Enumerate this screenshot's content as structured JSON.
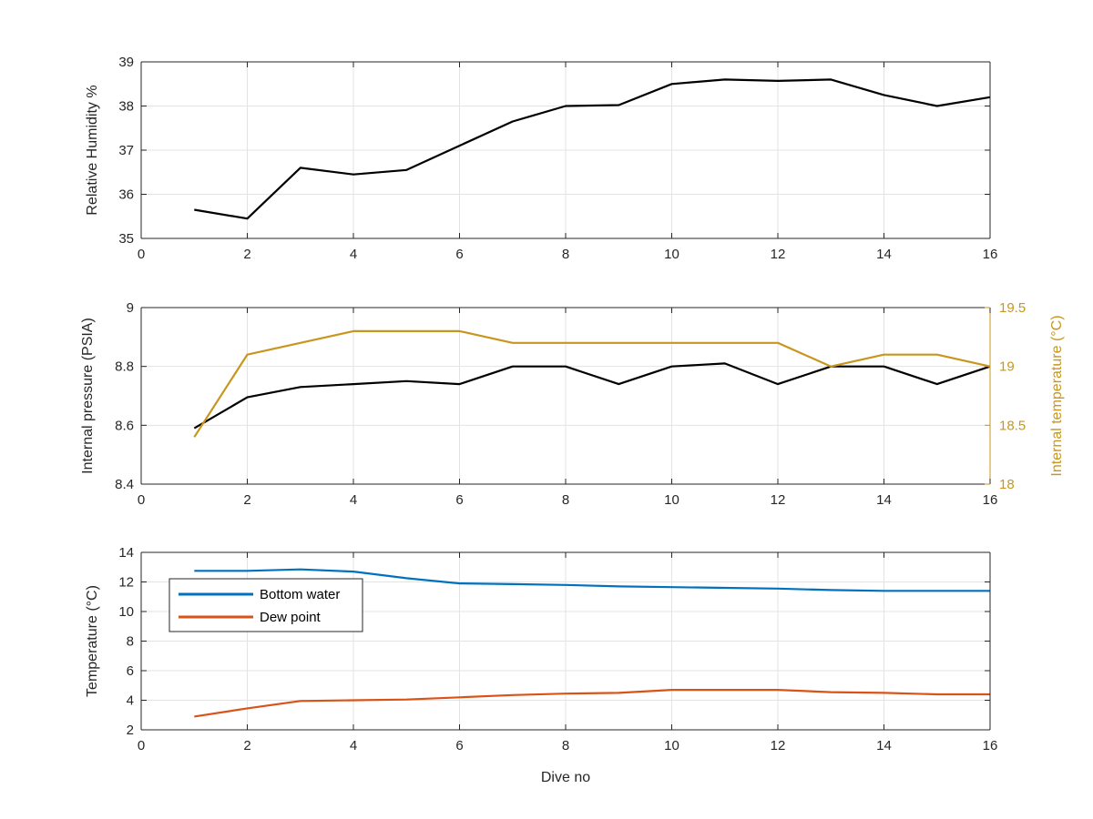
{
  "chart_data": [
    {
      "type": "line",
      "xlabel": "",
      "ylabel": "Relative Humidity %",
      "xlim": [
        0,
        16
      ],
      "ylim": [
        35,
        39
      ],
      "xticks": [
        "0",
        "2",
        "4",
        "6",
        "8",
        "10",
        "12",
        "14",
        "16"
      ],
      "yticks": [
        "35",
        "36",
        "37",
        "38",
        "39"
      ],
      "grid": true,
      "colors": [
        "#000000"
      ],
      "x": [
        1,
        2,
        3,
        4,
        5,
        6,
        7,
        8,
        9,
        10,
        11,
        12,
        13,
        14,
        15,
        16
      ],
      "series": [
        {
          "values": [
            35.65,
            35.45,
            36.6,
            36.45,
            36.55,
            37.1,
            37.65,
            38.0,
            38.02,
            38.5,
            38.6,
            38.57,
            38.6,
            38.25,
            38.0,
            38.2
          ]
        }
      ]
    },
    {
      "type": "line",
      "xlabel": "",
      "ylabel": "Internal pressure (PSIA)",
      "ylabel_right": "Internal temperature (°C)",
      "xlim": [
        0,
        16
      ],
      "ylim": [
        8.4,
        9.0
      ],
      "ylim_right": [
        18,
        19.5
      ],
      "xticks": [
        "0",
        "2",
        "4",
        "6",
        "8",
        "10",
        "12",
        "14",
        "16"
      ],
      "yticks": [
        "8.4",
        "8.6",
        "8.8",
        "9"
      ],
      "yticks_right": [
        "18",
        "18.5",
        "19",
        "19.5"
      ],
      "grid": true,
      "colors": [
        "#000000",
        "#C8961E"
      ],
      "x": [
        1,
        2,
        3,
        4,
        5,
        6,
        7,
        8,
        9,
        10,
        11,
        12,
        13,
        14,
        15,
        16
      ],
      "series": [
        {
          "axis": "left",
          "values": [
            8.59,
            8.695,
            8.73,
            8.74,
            8.75,
            8.74,
            8.8,
            8.8,
            8.74,
            8.8,
            8.81,
            8.74,
            8.8,
            8.8,
            8.74,
            8.8
          ]
        },
        {
          "axis": "right",
          "values": [
            18.4,
            19.1,
            19.2,
            19.3,
            19.3,
            19.3,
            19.2,
            19.2,
            19.2,
            19.2,
            19.2,
            19.2,
            19.0,
            19.1,
            19.1,
            19.0
          ]
        }
      ]
    },
    {
      "type": "line",
      "xlabel": "Dive no",
      "ylabel": "Temperature (°C)",
      "xlim": [
        0,
        16
      ],
      "ylim": [
        2,
        14
      ],
      "xticks": [
        "0",
        "2",
        "4",
        "6",
        "8",
        "10",
        "12",
        "14",
        "16"
      ],
      "yticks": [
        "2",
        "4",
        "6",
        "8",
        "10",
        "12",
        "14"
      ],
      "grid": true,
      "legend": "top-left",
      "colors": [
        "#0072BD",
        "#D95319"
      ],
      "x": [
        1,
        2,
        3,
        4,
        5,
        6,
        7,
        8,
        9,
        10,
        11,
        12,
        13,
        14,
        15,
        16
      ],
      "series": [
        {
          "name": "Bottom water",
          "values": [
            12.75,
            12.75,
            12.85,
            12.7,
            12.25,
            11.9,
            11.85,
            11.8,
            11.7,
            11.65,
            11.6,
            11.55,
            11.45,
            11.4,
            11.4,
            11.4
          ]
        },
        {
          "name": "Dew point",
          "values": [
            2.9,
            3.45,
            3.95,
            4.0,
            4.05,
            4.2,
            4.35,
            4.45,
            4.5,
            4.7,
            4.7,
            4.7,
            4.55,
            4.5,
            4.4,
            4.4
          ]
        }
      ]
    }
  ]
}
